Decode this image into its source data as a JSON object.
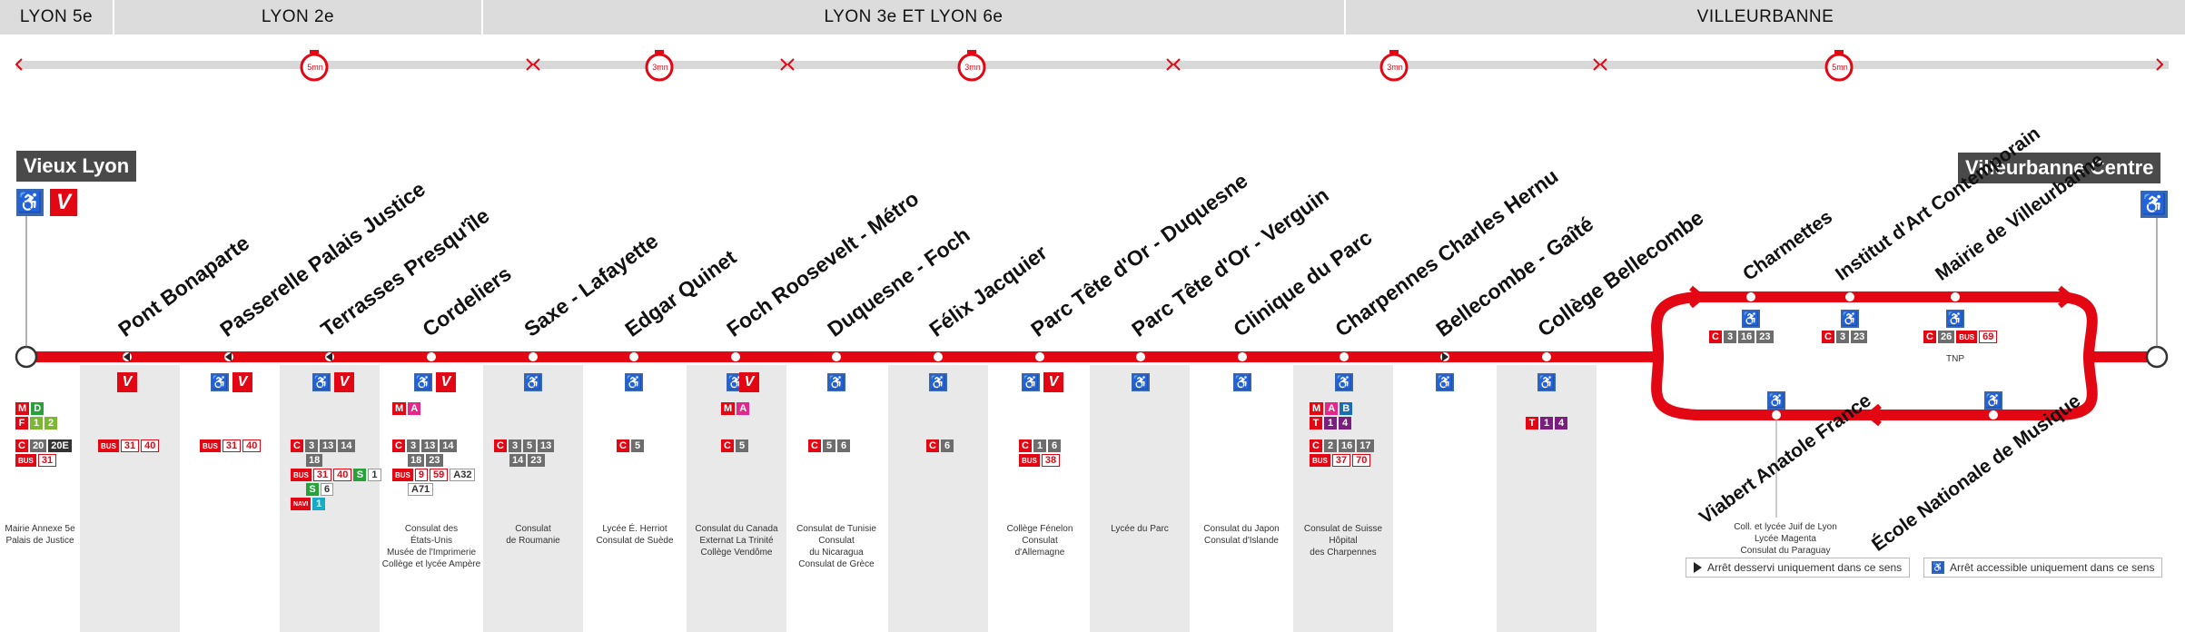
{
  "districts": [
    "LYON 5e",
    "LYON 2e",
    "LYON 3e ET LYON 6e",
    "VILLEURBANNE"
  ],
  "travel_times": [
    "5mn",
    "3mn",
    "3mn",
    "3mn",
    "5mn"
  ],
  "terminals": {
    "start": "Vieux Lyon",
    "end": "Villeurbanne Centre"
  },
  "stops": [
    "Pont Bonaparte",
    "Passerelle Palais Justice",
    "Terrasses Presqu'île",
    "Cordeliers",
    "Saxe - Lafayette",
    "Edgar Quinet",
    "Foch Roosevelt - Métro",
    "Duquesne - Foch",
    "Félix Jacquier",
    "Parc Tête d'Or - Duquesne",
    "Parc Tête d'Or - Verguin",
    "Clinique du Parc",
    "Charpennes Charles Hernu",
    "Bellecombe - Gaîté",
    "Collège Bellecombe"
  ],
  "loop_top": [
    "Charmettes",
    "Institut d'Art Contemporain",
    "Mairie de Villeurbanne"
  ],
  "loop_bottom": [
    "Viabert Anatole France",
    "École Nationale de Musique"
  ],
  "notes": {
    "vieux_lyon": "Mairie Annexe 5e\nPalais de Justice",
    "cordeliers": "Consulat des\nÉtats-Unis\nMusée de l'Imprimerie\nCollège et lycée Ampère",
    "saxe": "Consulat\nde Roumanie",
    "edgar": "Lycée É. Herriot\nConsulat de Suède",
    "foch": "Consulat du Canada\nExternat La Trinité\nCollège Vendôme",
    "duquesne": "Consulat de Tunisie\nConsulat\ndu Nicaragua\nConsulat de Grèce",
    "parc_duquesne": "Collège Fénelon\nConsulat\nd'Allemagne",
    "parc_verguin": "Lycée du Parc",
    "clinique": "Consulat du Japon\nConsulat d'Islande",
    "charpennes": "Consulat de Suisse\nHôpital\ndes Charpennes",
    "viabert": "Coll. et lycée Juif de Lyon\nLycée Magenta\nConsulat du Paraguay",
    "mairie_tnp": "TNP"
  },
  "connections": {
    "vieux_lyon": {
      "row1": [
        "M",
        "D"
      ],
      "row2": [
        "F",
        "1",
        "2"
      ],
      "row3": [
        "C",
        "20",
        "20E"
      ],
      "row4": [
        "BUS",
        "31"
      ]
    },
    "pont_bonaparte": [
      "BUS",
      "31",
      "40"
    ],
    "passerelle": [
      "BUS",
      "31",
      "40"
    ],
    "terrasses": {
      "row1": [
        "C",
        "3",
        "13",
        "14"
      ],
      "row2": [
        "18"
      ],
      "row3": [
        "BUS",
        "31",
        "40",
        "S",
        "1"
      ],
      "row4": [
        "S",
        "6"
      ],
      "row5": [
        "NAVI",
        "1"
      ]
    },
    "cordeliers": {
      "metro": [
        "M",
        "A"
      ],
      "row1": [
        "C",
        "3",
        "13",
        "14"
      ],
      "row2": [
        "18",
        "23"
      ],
      "row3": [
        "BUS",
        "9",
        "59",
        "A32"
      ],
      "row4": [
        "A71"
      ]
    },
    "saxe": {
      "row1": [
        "C",
        "3",
        "5",
        "13"
      ],
      "row2": [
        "14",
        "23"
      ]
    },
    "edgar": [
      "C",
      "5"
    ],
    "foch": {
      "metro": [
        "M",
        "A"
      ],
      "row1": [
        "C",
        "5"
      ]
    },
    "duquesne": [
      "C",
      "5",
      "6"
    ],
    "felix": [
      "C",
      "6"
    ],
    "parc_duquesne": {
      "row1": [
        "C",
        "1",
        "6"
      ],
      "row2": [
        "BUS",
        "38"
      ]
    },
    "charpennes": {
      "metro": [
        "M",
        "A",
        "B"
      ],
      "tram": [
        "T",
        "1",
        "4"
      ],
      "row1": [
        "C",
        "2",
        "16",
        "17"
      ],
      "row2": [
        "BUS",
        "37",
        "70"
      ]
    },
    "college_bellecombe": [
      "T",
      "1",
      "4"
    ],
    "charmettes": [
      "C",
      "3",
      "16",
      "23"
    ],
    "institut": [
      "C",
      "3",
      "23"
    ],
    "mairie": [
      "C",
      "26",
      "BUS",
      "69"
    ]
  },
  "legend": {
    "one_way": "Arrêt desservi uniquement dans ce sens",
    "accessible": "Arrêt accessible uniquement dans ce sens"
  },
  "colors": {
    "line": "#e30613",
    "header_bg": "#dcdcdc",
    "terminal_bg": "#4a4a4a",
    "accessible": "#3a67b1"
  },
  "icons": [
    "wheelchair-icon",
    "velov-icon",
    "stopwatch-icon",
    "one-way-triangle-icon"
  ]
}
